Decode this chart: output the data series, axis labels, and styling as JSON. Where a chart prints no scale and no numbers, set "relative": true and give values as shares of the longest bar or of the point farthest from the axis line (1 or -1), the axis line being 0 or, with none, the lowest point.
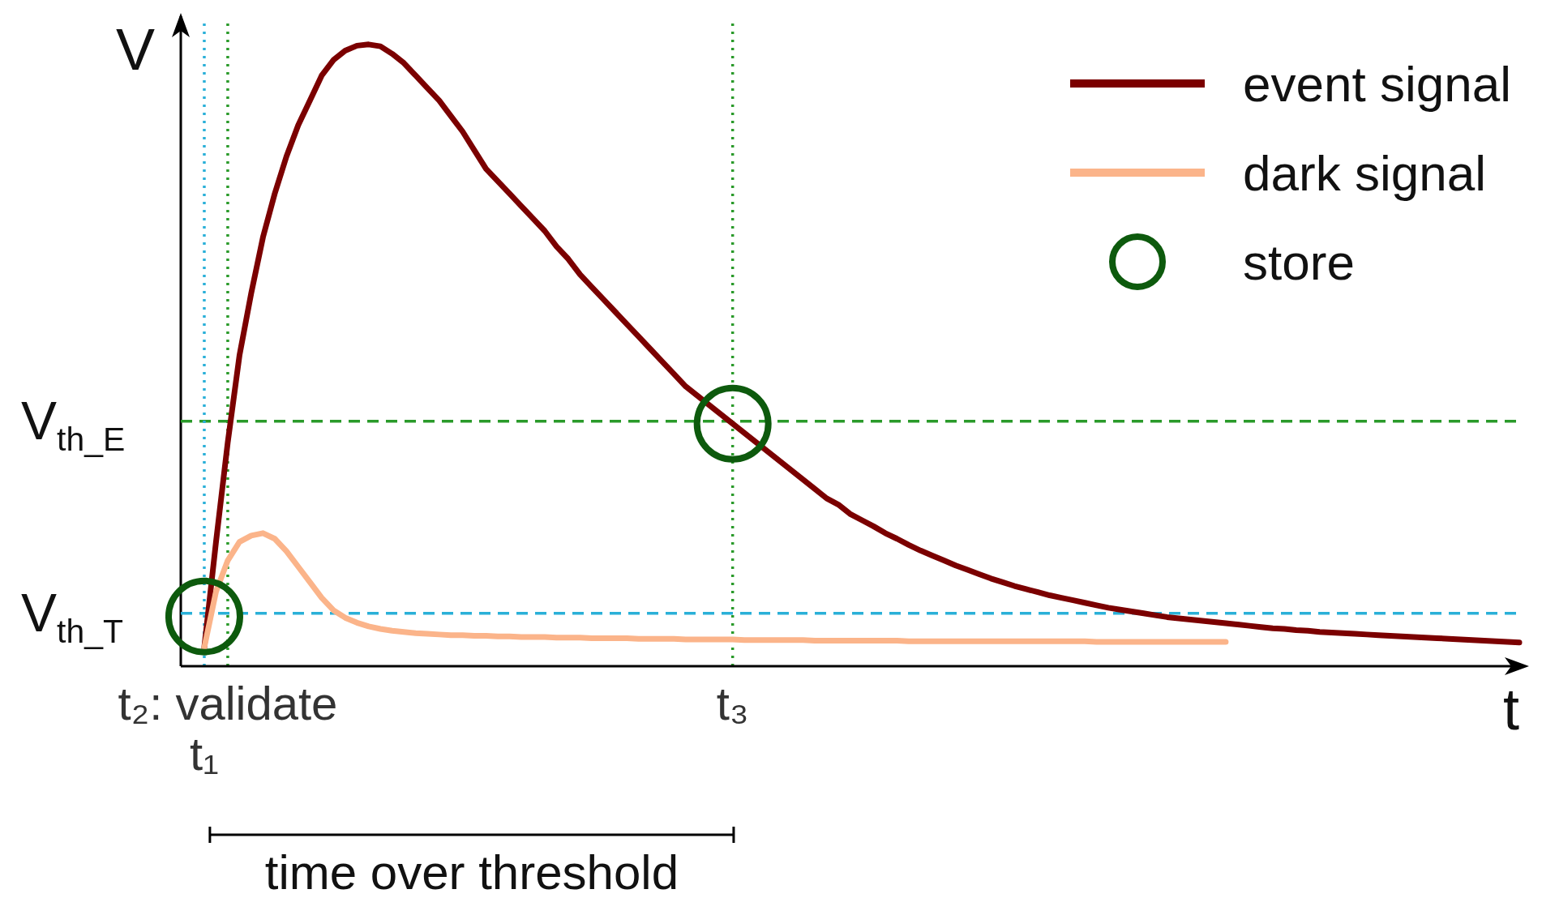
{
  "chart_data": {
    "type": "line",
    "relative": true,
    "xlabel": "t",
    "ylabel": "V",
    "legend": "top right",
    "grid": false,
    "line_style": "solid",
    "categories": [
      null,
      null,
      "t₁",
      null,
      "t₂: validate",
      null,
      null,
      null,
      null,
      null,
      null,
      null,
      null,
      null,
      null,
      null,
      null,
      null,
      null,
      null,
      null,
      null,
      null,
      null,
      null,
      null,
      null,
      null,
      null,
      null,
      null,
      null,
      null,
      null,
      null,
      null,
      null,
      null,
      null,
      null,
      null,
      null,
      null,
      null,
      null,
      null,
      null,
      "t₃",
      null,
      null,
      null,
      null,
      null,
      null,
      null,
      null,
      null,
      null,
      null,
      null,
      null,
      null,
      null,
      null,
      null,
      null,
      null,
      null,
      null,
      null,
      null,
      null,
      null,
      null,
      null,
      null,
      null,
      null,
      null,
      null,
      null,
      null,
      null,
      null,
      null,
      null,
      null,
      null,
      null,
      null,
      null,
      null,
      null,
      null,
      null,
      null,
      null,
      null,
      null,
      null,
      null,
      null,
      null,
      null,
      null,
      null,
      null,
      null,
      null,
      null,
      null,
      null,
      null,
      null,
      null
    ],
    "series": [
      {
        "name": "event signal",
        "type": "line",
        "marker": "none",
        "color": "#7b0000",
        "values": [
          null,
          null,
          0.03,
          0.2,
          0.36,
          0.5,
          0.6,
          0.69,
          0.76,
          0.82,
          0.87,
          0.91,
          0.95,
          0.975,
          0.99,
          0.998,
          1,
          0.997,
          0.985,
          0.97,
          0.95,
          0.93,
          0.91,
          0.885,
          0.86,
          0.83,
          0.8,
          0.78,
          0.76,
          0.74,
          0.72,
          0.7,
          0.675,
          0.655,
          0.63,
          0.61,
          0.59,
          0.57,
          0.55,
          0.53,
          0.51,
          0.49,
          0.47,
          0.45,
          0.435,
          0.42,
          0.405,
          0.39,
          0.375,
          0.36,
          0.345,
          0.33,
          0.315,
          0.3,
          0.285,
          0.27,
          0.26,
          0.245,
          0.235,
          0.225,
          0.214,
          0.205,
          0.195,
          0.186,
          0.178,
          0.17,
          0.162,
          0.155,
          0.148,
          0.141,
          0.135,
          0.129,
          0.124,
          0.119,
          0.114,
          0.11,
          0.106,
          0.102,
          0.098,
          0.094,
          0.091,
          0.088,
          0.085,
          0.082,
          0.079,
          0.077,
          0.075,
          0.073,
          0.071,
          0.069,
          0.067,
          0.065,
          0.063,
          0.061,
          0.06,
          0.058,
          0.057,
          0.055,
          0.054,
          0.053,
          0.052,
          0.051,
          0.05,
          0.049,
          0.048,
          0.047,
          0.046,
          0.045,
          0.044,
          0.043,
          0.042,
          0.041,
          0.04,
          0.039,
          0.038
        ]
      },
      {
        "name": "dark signal",
        "type": "line",
        "marker": "none",
        "color": "#fbb48a",
        "values": [
          null,
          null,
          0.03,
          0.12,
          0.17,
          0.2,
          0.21,
          0.214,
          0.205,
          0.185,
          0.16,
          0.135,
          0.11,
          0.09,
          0.078,
          0.07,
          0.064,
          0.06,
          0.057,
          0.055,
          0.053,
          0.052,
          0.051,
          0.05,
          0.05,
          0.049,
          0.049,
          0.048,
          0.048,
          0.047,
          0.047,
          0.047,
          0.046,
          0.046,
          0.046,
          0.045,
          0.045,
          0.045,
          0.045,
          0.044,
          0.044,
          0.044,
          0.044,
          0.043,
          0.043,
          0.043,
          0.043,
          0.043,
          0.042,
          0.042,
          0.042,
          0.042,
          0.042,
          0.042,
          0.041,
          0.041,
          0.041,
          0.041,
          0.041,
          0.041,
          0.041,
          0.041,
          0.04,
          0.04,
          0.04,
          0.04,
          0.04,
          0.04,
          0.04,
          0.04,
          0.04,
          0.04,
          0.04,
          0.04,
          0.04,
          0.04,
          0.04,
          0.04,
          0.039,
          0.039,
          0.039,
          0.039,
          0.039,
          0.039,
          0.039,
          0.039,
          0.039,
          0.039,
          0.039,
          0.039,
          null,
          null,
          null,
          null,
          null,
          null,
          null,
          null,
          null,
          null,
          null,
          null,
          null,
          null,
          null,
          null,
          null,
          null,
          null,
          null,
          null,
          null,
          null,
          null,
          null
        ]
      },
      {
        "name": "store",
        "type": "scatter",
        "marker": "circle",
        "color": "#0d5a0d",
        "x": [
          "t₁",
          "t₃"
        ],
        "values": [
          0.08,
          0.39
        ]
      }
    ],
    "ref_lines": [
      {
        "axis": "y",
        "value": 0.394,
        "label": "V$_{th_E}$",
        "color": "#2a9a2a",
        "line_style": "dashed"
      },
      {
        "axis": "y",
        "value": 0.085,
        "label": "V$_{th_T}$",
        "color": "#2ab0d8",
        "line_style": "dashed"
      },
      {
        "axis": "x",
        "value": "t₁",
        "color": "#2ab0d8",
        "line_style": "dotted"
      },
      {
        "axis": "x",
        "value": "t₂: validate",
        "color": "#2a9a2a",
        "line_style": "dotted"
      },
      {
        "axis": "x",
        "value": "t₃",
        "color": "#2a9a2a",
        "line_style": "dotted"
      }
    ],
    "annotations": [
      "time over threshold"
    ]
  }
}
